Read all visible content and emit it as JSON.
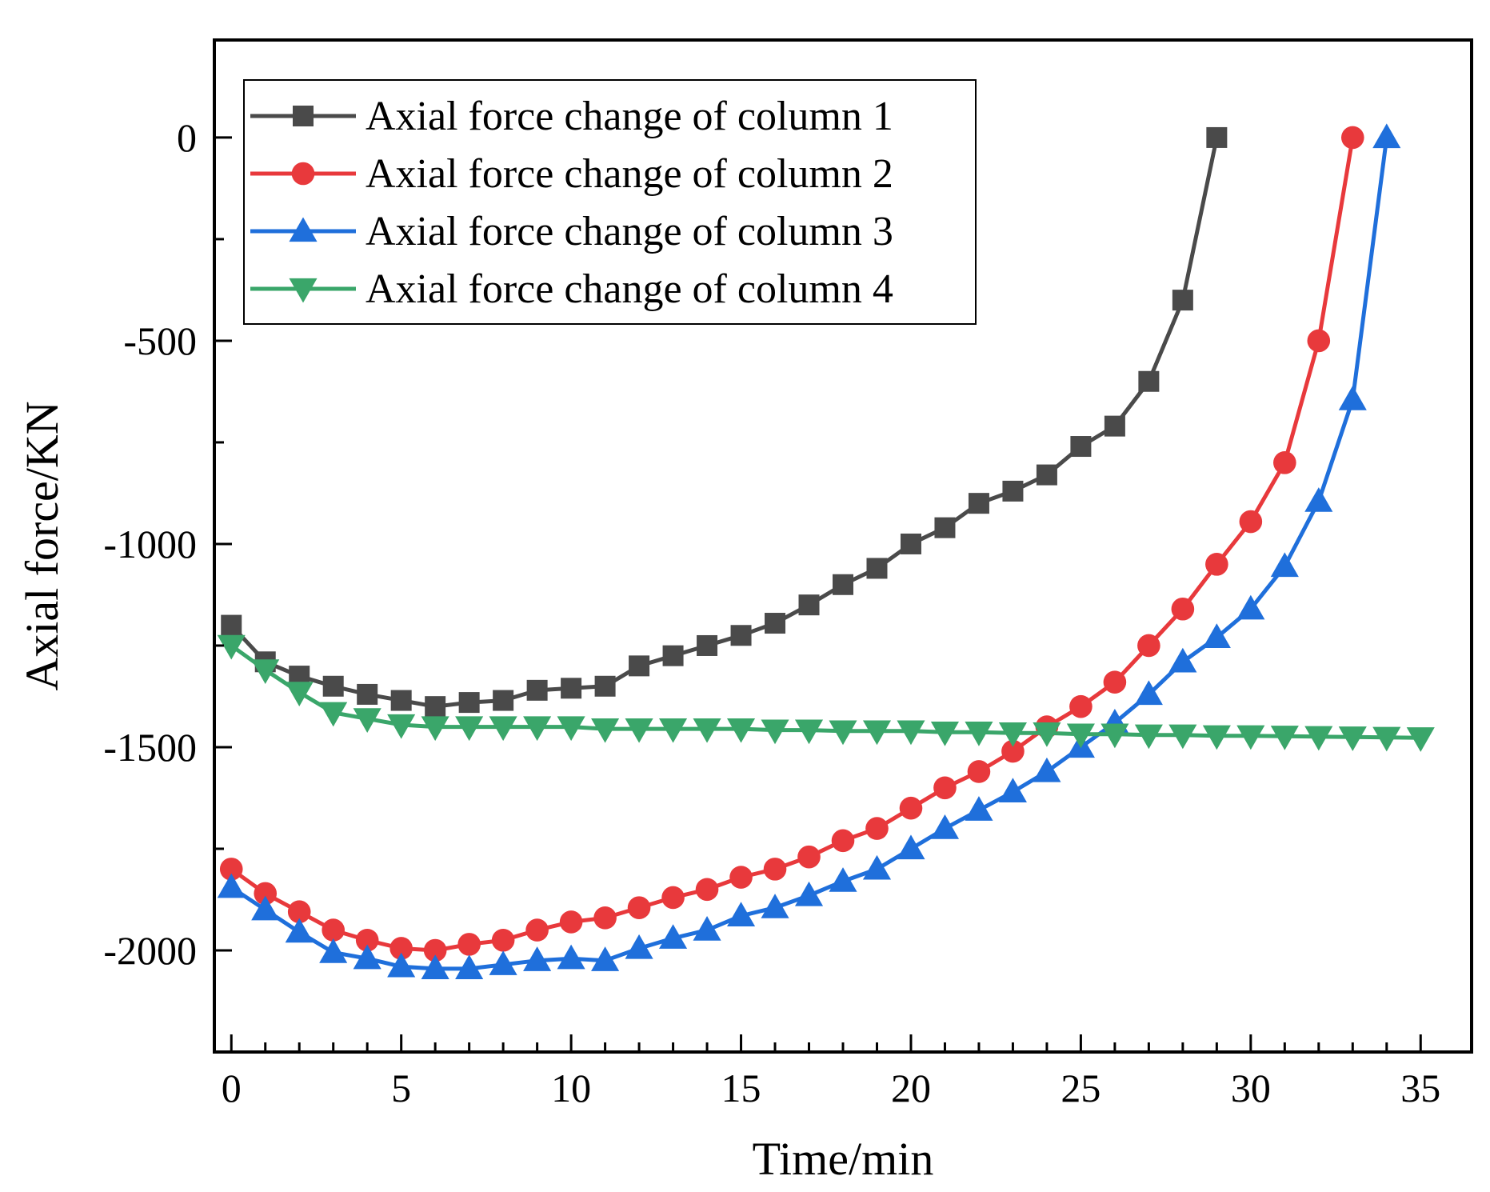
{
  "chart_data": {
    "type": "line",
    "title": "",
    "xlabel": "Time/min",
    "ylabel": "Axial force/KN",
    "xlim": [
      -0.5,
      36.5
    ],
    "ylim": [
      -2250,
      240
    ],
    "xticks": [
      0,
      5,
      10,
      15,
      20,
      25,
      30,
      35
    ],
    "yticks": [
      0,
      -500,
      -1000,
      -1500,
      -2000
    ],
    "grid": false,
    "legend_position": "top-left",
    "series": [
      {
        "name": "Axial force change of column 1",
        "color": "#4a4a4a",
        "marker": "square",
        "x": [
          0,
          1,
          2,
          3,
          4,
          5,
          6,
          7,
          8,
          9,
          10,
          11,
          12,
          13,
          14,
          15,
          16,
          17,
          18,
          19,
          20,
          21,
          22,
          23,
          24,
          25,
          26,
          27,
          28,
          29
        ],
        "y": [
          -1200,
          -1290,
          -1325,
          -1350,
          -1370,
          -1385,
          -1400,
          -1390,
          -1385,
          -1360,
          -1355,
          -1350,
          -1300,
          -1275,
          -1250,
          -1225,
          -1195,
          -1150,
          -1100,
          -1060,
          -1000,
          -960,
          -900,
          -870,
          -830,
          -760,
          -710,
          -600,
          -400,
          0
        ]
      },
      {
        "name": "Axial force change of column 2",
        "color": "#e8393c",
        "marker": "circle",
        "x": [
          0,
          1,
          2,
          3,
          4,
          5,
          6,
          7,
          8,
          9,
          10,
          11,
          12,
          13,
          14,
          15,
          16,
          17,
          18,
          19,
          20,
          21,
          22,
          23,
          24,
          25,
          26,
          27,
          28,
          29,
          30,
          31,
          32,
          33
        ],
        "y": [
          -1800,
          -1860,
          -1905,
          -1950,
          -1975,
          -1995,
          -2000,
          -1985,
          -1975,
          -1950,
          -1930,
          -1920,
          -1895,
          -1870,
          -1850,
          -1820,
          -1800,
          -1770,
          -1730,
          -1700,
          -1650,
          -1600,
          -1560,
          -1510,
          -1450,
          -1400,
          -1340,
          -1250,
          -1160,
          -1050,
          -945,
          -800,
          -500,
          0
        ]
      },
      {
        "name": "Axial force change of column 3",
        "color": "#1f6fdb",
        "marker": "triangle-up",
        "x": [
          0,
          1,
          2,
          3,
          4,
          5,
          6,
          7,
          8,
          9,
          10,
          11,
          12,
          13,
          14,
          15,
          16,
          17,
          18,
          19,
          20,
          21,
          22,
          23,
          24,
          25,
          26,
          27,
          28,
          29,
          30,
          31,
          32,
          33,
          34
        ],
        "y": [
          -1845,
          -1900,
          -1955,
          -2005,
          -2020,
          -2040,
          -2045,
          -2045,
          -2035,
          -2025,
          -2020,
          -2025,
          -1995,
          -1970,
          -1950,
          -1915,
          -1895,
          -1865,
          -1830,
          -1800,
          -1750,
          -1700,
          -1655,
          -1610,
          -1560,
          -1500,
          -1440,
          -1370,
          -1290,
          -1230,
          -1160,
          -1055,
          -895,
          -645,
          0
        ]
      },
      {
        "name": "Axial force change of column 4",
        "color": "#3aa66a",
        "marker": "triangle-down",
        "x": [
          0,
          1,
          2,
          3,
          4,
          5,
          6,
          7,
          8,
          9,
          10,
          11,
          12,
          13,
          14,
          15,
          16,
          17,
          18,
          19,
          20,
          21,
          22,
          23,
          24,
          25,
          26,
          27,
          28,
          29,
          30,
          31,
          32,
          33,
          34,
          35
        ],
        "y": [
          -1250,
          -1310,
          -1365,
          -1415,
          -1430,
          -1445,
          -1450,
          -1450,
          -1450,
          -1450,
          -1450,
          -1455,
          -1455,
          -1455,
          -1455,
          -1455,
          -1458,
          -1458,
          -1460,
          -1460,
          -1460,
          -1463,
          -1463,
          -1465,
          -1465,
          -1468,
          -1468,
          -1470,
          -1470,
          -1472,
          -1472,
          -1473,
          -1474,
          -1475,
          -1476,
          -1477
        ]
      }
    ]
  }
}
